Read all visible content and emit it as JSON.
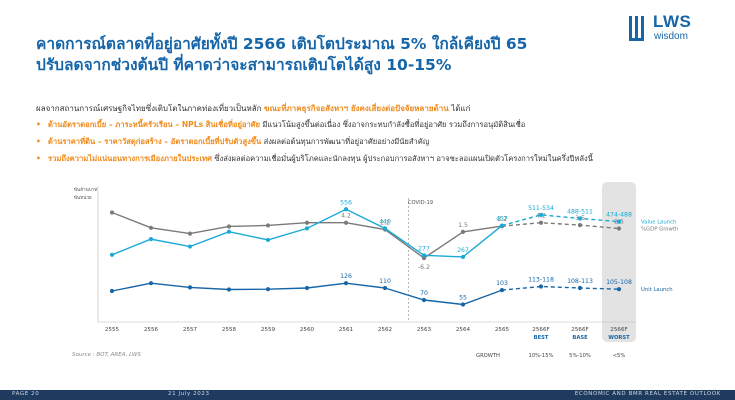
{
  "title_line1": "คาดการณ์ตลาดที่อยู่อาศัยทั้งปี 2566 เติบโตประมาณ 5% ใกล้เคียงปี 65",
  "title_line2": "ปรับลดจากช่วงต้นปี ที่คาดว่าจะสามารถเติบโตได้สูง 10-15%",
  "logo": {
    "main": "LWS",
    "sub": "wisdom"
  },
  "intro": {
    "text1": "ผลจากสถานการณ์เศรษฐกิจไทยซึ่งเติบโตในภาคท่องเที่ยวเป็นหลัก ",
    "highlight": "ขณะที่ภาคธุรกิจอสังหาฯ ยังคงเสี่ยงต่อปัจจัยหลายด้าน",
    "text2": " ได้แก่"
  },
  "bullets": [
    {
      "highlight": "ด้านอัตราดอกเบี้ย – ภาระหนี้ครัวเรือน – NPLs สินเชื่อที่อยู่อาศัย",
      "text": " มีแนวโน้มสูงขึ้นต่อเนื่อง ซึ่งอาจกระทบกำลังซื้อที่อยู่อาศัย รวมถึงการอนุมัติสินเชื่อ"
    },
    {
      "highlight": "ด้านราคาที่ดิน – ราคาวัสดุก่อสร้าง – อัตราดอกเบี้ยที่ปรับตัวสูงขึ้น",
      "text": " ส่งผลต่อต้นทุนการพัฒนาที่อยู่อาศัยอย่างมีนัยสำคัญ"
    },
    {
      "highlight": "รวมถึงความไม่แน่นอนทางการเมืองภายในประเทศ",
      "text": " ซึ่งส่งผลต่อความเชื่อมั่นผู้บริโภคและนักลงทุน ผู้ประกอบการอสังหาฯ อาจชะลอแผนเปิดตัวโครงการใหม่ในครึ่งปีหลังนี้"
    }
  ],
  "chart_data": {
    "type": "line",
    "unit_label_1": "พันล้านบาท",
    "unit_label_2": "พันหน่วย",
    "categories": [
      "2555",
      "2556",
      "2557",
      "2558",
      "2559",
      "2560",
      "2561",
      "2562",
      "2563",
      "2564",
      "2565",
      "2566F",
      "2566F",
      "2566F"
    ],
    "scenario_labels": [
      "BEST",
      "BASE",
      "WORST"
    ],
    "covid_label": "COVID-19",
    "series": [
      {
        "name": "%GDP Growth",
        "color": "#7a7a7a",
        "values": [
          7.2,
          2.7,
          1.0,
          3.1,
          3.4,
          4.2,
          4.2,
          2.2,
          -6.2,
          1.5,
          3.2,
          4.2,
          3.5,
          2.5
        ],
        "data_labels": [
          null,
          null,
          null,
          null,
          null,
          null,
          "4.2",
          "2.2",
          "-6.2",
          "1.5",
          "3.2",
          "4.2",
          "3.5",
          "2.5"
        ]
      },
      {
        "name": "Value Launch",
        "color": "#1ba9d6",
        "values": [
          280,
          375,
          330,
          420,
          370,
          440,
          556,
          440,
          277,
          267,
          457,
          522,
          500,
          481
        ],
        "data_labels": [
          null,
          null,
          null,
          null,
          null,
          null,
          "556",
          "440",
          "277",
          "267",
          "457",
          "511-534",
          "488-511",
          "474-488"
        ]
      },
      {
        "name": "Unit Launch",
        "color": "#1565a8",
        "values": [
          100,
          126,
          112,
          105,
          106,
          110,
          126,
          110,
          70,
          55,
          103,
          115,
          110,
          106
        ],
        "data_labels": [
          null,
          null,
          null,
          null,
          null,
          null,
          "126",
          "110",
          "70",
          "55",
          "103",
          "113-118",
          "108-113",
          "105-108"
        ]
      }
    ],
    "growth_label": "GROWTH",
    "growth_values": [
      "10%-15%",
      "5%-10%",
      "<5%"
    ],
    "source": "Source : BOT, AREA, LWS"
  },
  "footer": {
    "page": "PAGE 20",
    "date": "21 July 2023",
    "right": "ECONOMIC AND BMR REAL ESTATE OUTLOOK"
  },
  "colors": {
    "accent": "#1565a8",
    "highlight": "#f08a1c",
    "footer_bg": "#1f3a5f"
  }
}
